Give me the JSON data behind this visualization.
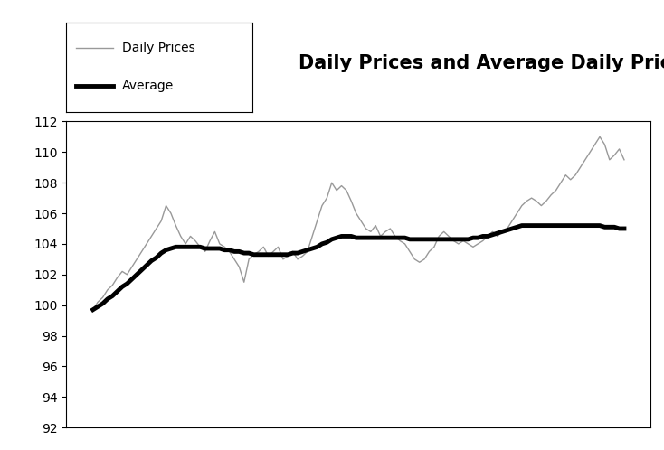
{
  "title": "Daily Prices and Average Daily Prices",
  "title_fontsize": 15,
  "title_fontweight": "bold",
  "ylim": [
    92,
    112
  ],
  "yticks": [
    92,
    94,
    96,
    98,
    100,
    102,
    104,
    106,
    108,
    110,
    112
  ],
  "legend_labels": [
    "Daily Prices",
    "Average"
  ],
  "daily_prices": [
    99.7,
    100.2,
    100.5,
    101.0,
    101.3,
    101.8,
    102.2,
    102.0,
    102.5,
    103.0,
    103.5,
    104.0,
    104.5,
    105.0,
    105.5,
    106.5,
    106.0,
    105.2,
    104.5,
    104.0,
    104.5,
    104.2,
    103.8,
    103.5,
    104.2,
    104.8,
    104.0,
    103.8,
    103.5,
    103.0,
    102.5,
    101.5,
    103.0,
    103.3,
    103.5,
    103.8,
    103.2,
    103.5,
    103.8,
    103.0,
    103.2,
    103.5,
    103.0,
    103.2,
    103.5,
    104.5,
    105.5,
    106.5,
    107.0,
    108.0,
    107.5,
    107.8,
    107.5,
    106.8,
    106.0,
    105.5,
    105.0,
    104.8,
    105.2,
    104.5,
    104.8,
    105.0,
    104.5,
    104.2,
    104.0,
    103.5,
    103.0,
    102.8,
    103.0,
    103.5,
    103.8,
    104.5,
    104.8,
    104.5,
    104.2,
    104.0,
    104.2,
    104.0,
    103.8,
    104.0,
    104.2,
    104.5,
    104.8,
    104.5,
    104.8,
    105.0,
    105.5,
    106.0,
    106.5,
    106.8,
    107.0,
    106.8,
    106.5,
    106.8,
    107.2,
    107.5,
    108.0,
    108.5,
    108.2,
    108.5,
    109.0,
    109.5,
    110.0,
    110.5,
    111.0,
    110.5,
    109.5,
    109.8,
    110.2,
    109.5
  ],
  "average": [
    99.7,
    99.9,
    100.1,
    100.4,
    100.6,
    100.9,
    101.2,
    101.4,
    101.7,
    102.0,
    102.3,
    102.6,
    102.9,
    103.1,
    103.4,
    103.6,
    103.7,
    103.8,
    103.8,
    103.8,
    103.8,
    103.8,
    103.8,
    103.7,
    103.7,
    103.7,
    103.7,
    103.6,
    103.6,
    103.5,
    103.5,
    103.4,
    103.4,
    103.3,
    103.3,
    103.3,
    103.3,
    103.3,
    103.3,
    103.3,
    103.3,
    103.4,
    103.4,
    103.5,
    103.6,
    103.7,
    103.8,
    104.0,
    104.1,
    104.3,
    104.4,
    104.5,
    104.5,
    104.5,
    104.4,
    104.4,
    104.4,
    104.4,
    104.4,
    104.4,
    104.4,
    104.4,
    104.4,
    104.4,
    104.4,
    104.3,
    104.3,
    104.3,
    104.3,
    104.3,
    104.3,
    104.3,
    104.3,
    104.3,
    104.3,
    104.3,
    104.3,
    104.3,
    104.4,
    104.4,
    104.5,
    104.5,
    104.6,
    104.7,
    104.8,
    104.9,
    105.0,
    105.1,
    105.2,
    105.2,
    105.2,
    105.2,
    105.2,
    105.2,
    105.2,
    105.2,
    105.2,
    105.2,
    105.2,
    105.2,
    105.2,
    105.2,
    105.2,
    105.2,
    105.2,
    105.1,
    105.1,
    105.1,
    105.0,
    105.0
  ],
  "daily_color": "#999999",
  "average_color": "#000000",
  "daily_linewidth": 1.0,
  "average_linewidth": 3.5,
  "bg_color": "#ffffff"
}
